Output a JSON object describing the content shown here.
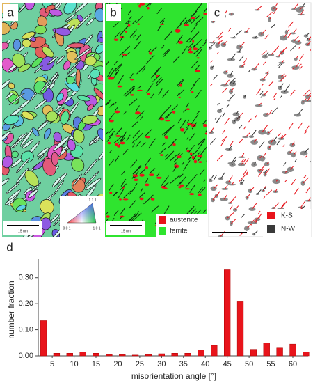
{
  "panels": [
    {
      "label": "a",
      "scale_bar": "15 um",
      "legend": {
        "vertices": [
          "1 1 1",
          "0 0 1",
          "1 0 1"
        ]
      }
    },
    {
      "label": "b",
      "scale_bar": "15 um",
      "legend": {
        "items": [
          {
            "label": "austenite",
            "color": "#e8141b"
          },
          {
            "label": "ferrite",
            "color": "#2fe42f"
          }
        ]
      }
    },
    {
      "label": "c",
      "legend": {
        "items": [
          {
            "label": "K-S",
            "color": "#e8141b"
          },
          {
            "label": "N-W",
            "color": "#3a3a3a"
          }
        ]
      }
    }
  ],
  "chart_data": {
    "type": "bar",
    "panel_label": "d",
    "x_label": "misorientation angle [°]",
    "y_label": "number fraction",
    "x": [
      3,
      6,
      9,
      12,
      15,
      18,
      21,
      24,
      27,
      30,
      33,
      36,
      39,
      42,
      45,
      48,
      51,
      54,
      57,
      60,
      63
    ],
    "values": [
      0.135,
      0.01,
      0.01,
      0.015,
      0.01,
      0.005,
      0.005,
      0.003,
      0.005,
      0.008,
      0.01,
      0.01,
      0.022,
      0.04,
      0.33,
      0.21,
      0.025,
      0.05,
      0.03,
      0.045,
      0.015
    ],
    "color": "#e8141b",
    "xlim": [
      1.8,
      63.5
    ],
    "xticks": [
      5,
      10,
      15,
      20,
      25,
      30,
      35,
      40,
      45,
      50,
      55,
      60
    ],
    "ylim": [
      0,
      0.35
    ],
    "yticks": [
      {
        "value": 0,
        "label": "0.00"
      },
      {
        "value": 0.1,
        "label": "0.10"
      },
      {
        "value": 0.2,
        "label": "0.20"
      },
      {
        "value": 0.3,
        "label": "0.30"
      }
    ]
  }
}
